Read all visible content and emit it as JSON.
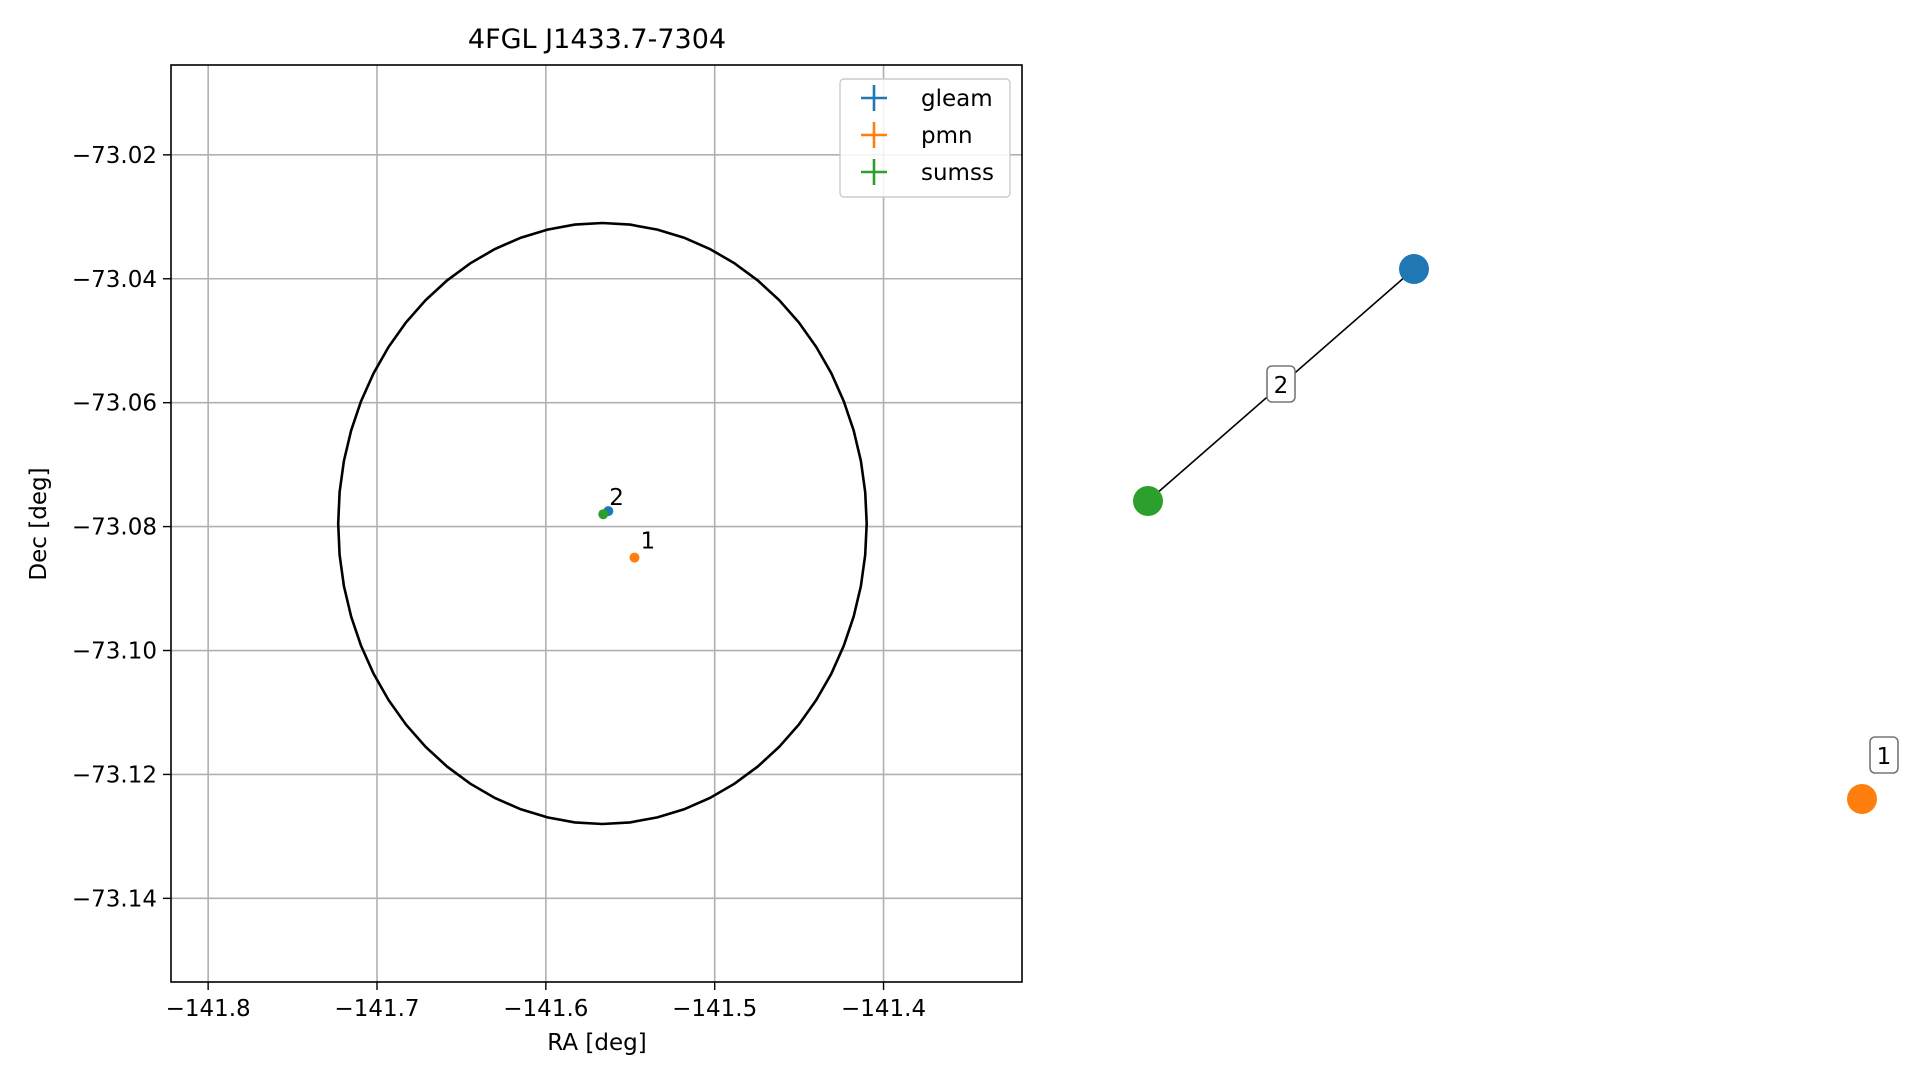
{
  "figure": {
    "title": "4FGL J1433.7-7304"
  },
  "chart_data": [
    {
      "type": "scatter",
      "title": "4FGL J1433.7-7304",
      "xlabel": "RA [deg]",
      "ylabel": "Dec [deg]",
      "xlim": [
        -141.822,
        -141.318
      ],
      "ylim": [
        -73.1535,
        -73.0055
      ],
      "xticks": [
        -141.8,
        -141.7,
        -141.6,
        -141.5,
        -141.4
      ],
      "xtick_labels": [
        "−141.8",
        "−141.7",
        "−141.6",
        "−141.5",
        "−141.4"
      ],
      "yticks": [
        -73.02,
        -73.04,
        -73.06,
        -73.08,
        -73.1,
        -73.12,
        -73.14
      ],
      "ytick_labels": [
        "−73.02",
        "−73.04",
        "−73.06",
        "−73.08",
        "−73.10",
        "−73.12",
        "−73.14"
      ],
      "grid": true,
      "legend": {
        "placement": "top-right",
        "marker": "+ with error bars"
      },
      "series": [
        {
          "name": "gleam",
          "color": "#1f77b4",
          "points": [
            {
              "x": -141.563,
              "y": -73.0775
            }
          ]
        },
        {
          "name": "pmn",
          "color": "#ff7f0e",
          "points": [
            {
              "x": -141.5475,
              "y": -73.085,
              "label": "1"
            }
          ]
        },
        {
          "name": "sumss",
          "color": "#2ca02c",
          "points": [
            {
              "x": -141.566,
              "y": -73.078,
              "label": "2"
            }
          ]
        }
      ],
      "ellipse": {
        "color": "#000000",
        "center_x": -141.5665,
        "center_y": -73.0795,
        "semi_axis_ra": 0.1565,
        "semi_axis_dec": 0.0485
      }
    },
    {
      "type": "network",
      "nodes": [
        {
          "id": "gleam",
          "color": "#1f77b4"
        },
        {
          "id": "sumss",
          "color": "#2ca02c"
        },
        {
          "id": "pmn",
          "color": "#ff7f0e"
        }
      ],
      "edges": [
        {
          "source": "sumss",
          "target": "gleam",
          "label": "2"
        }
      ],
      "node_labels": [
        {
          "node": "pmn",
          "label": "1"
        }
      ]
    }
  ]
}
